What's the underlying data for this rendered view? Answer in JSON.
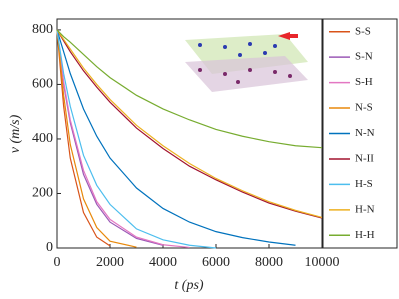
{
  "chart_data": {
    "type": "line",
    "xlabel": "t (ps)",
    "ylabel": "v (m/s)",
    "x": [
      0,
      250,
      500,
      1000,
      1500,
      2000,
      3000,
      4000,
      5000,
      6000,
      7000,
      8000,
      9000,
      10000
    ],
    "xlim": [
      0,
      10000
    ],
    "xticks": [
      0,
      2000,
      4000,
      6000,
      8000,
      10000
    ],
    "ylim": [
      0,
      840
    ],
    "yticks": [
      0,
      200,
      400,
      600,
      800
    ],
    "series": [
      {
        "name": "S-S",
        "color": "#d95319",
        "values": [
          800,
          520,
          330,
          130,
          40,
          8,
          null,
          null,
          null,
          null,
          null,
          null,
          null,
          null
        ]
      },
      {
        "name": "S-N",
        "color": "#9b59b6",
        "values": [
          800,
          600,
          460,
          270,
          160,
          95,
          35,
          10,
          null,
          null,
          null,
          null,
          null,
          null
        ]
      },
      {
        "name": "S-H",
        "color": "#e377c2",
        "values": [
          800,
          610,
          470,
          285,
          170,
          105,
          40,
          12,
          2,
          null,
          null,
          null,
          null,
          null
        ]
      },
      {
        "name": "N-S",
        "color": "#e8890c",
        "values": [
          800,
          560,
          380,
          180,
          75,
          25,
          3,
          null,
          null,
          null,
          null,
          null,
          null,
          null
        ]
      },
      {
        "name": "N-N",
        "color": "#0072bd",
        "values": [
          800,
          720,
          640,
          510,
          410,
          330,
          220,
          145,
          95,
          60,
          38,
          22,
          10,
          null
        ]
      },
      {
        "name": "N-II",
        "color": "#a2142f",
        "values": [
          800,
          760,
          720,
          650,
          590,
          535,
          440,
          365,
          300,
          250,
          205,
          165,
          135,
          110
        ]
      },
      {
        "name": "H-S",
        "color": "#4dbeee",
        "values": [
          800,
          640,
          520,
          340,
          230,
          160,
          70,
          30,
          10,
          0,
          null,
          null,
          null,
          null
        ]
      },
      {
        "name": "H-N",
        "color": "#edb120",
        "values": [
          800,
          765,
          730,
          660,
          600,
          545,
          450,
          375,
          310,
          255,
          210,
          170,
          138,
          112
        ]
      },
      {
        "name": "H-H",
        "color": "#77ac30",
        "values": [
          800,
          775,
          755,
          710,
          665,
          625,
          560,
          510,
          470,
          435,
          410,
          390,
          375,
          368
        ]
      }
    ]
  }
}
